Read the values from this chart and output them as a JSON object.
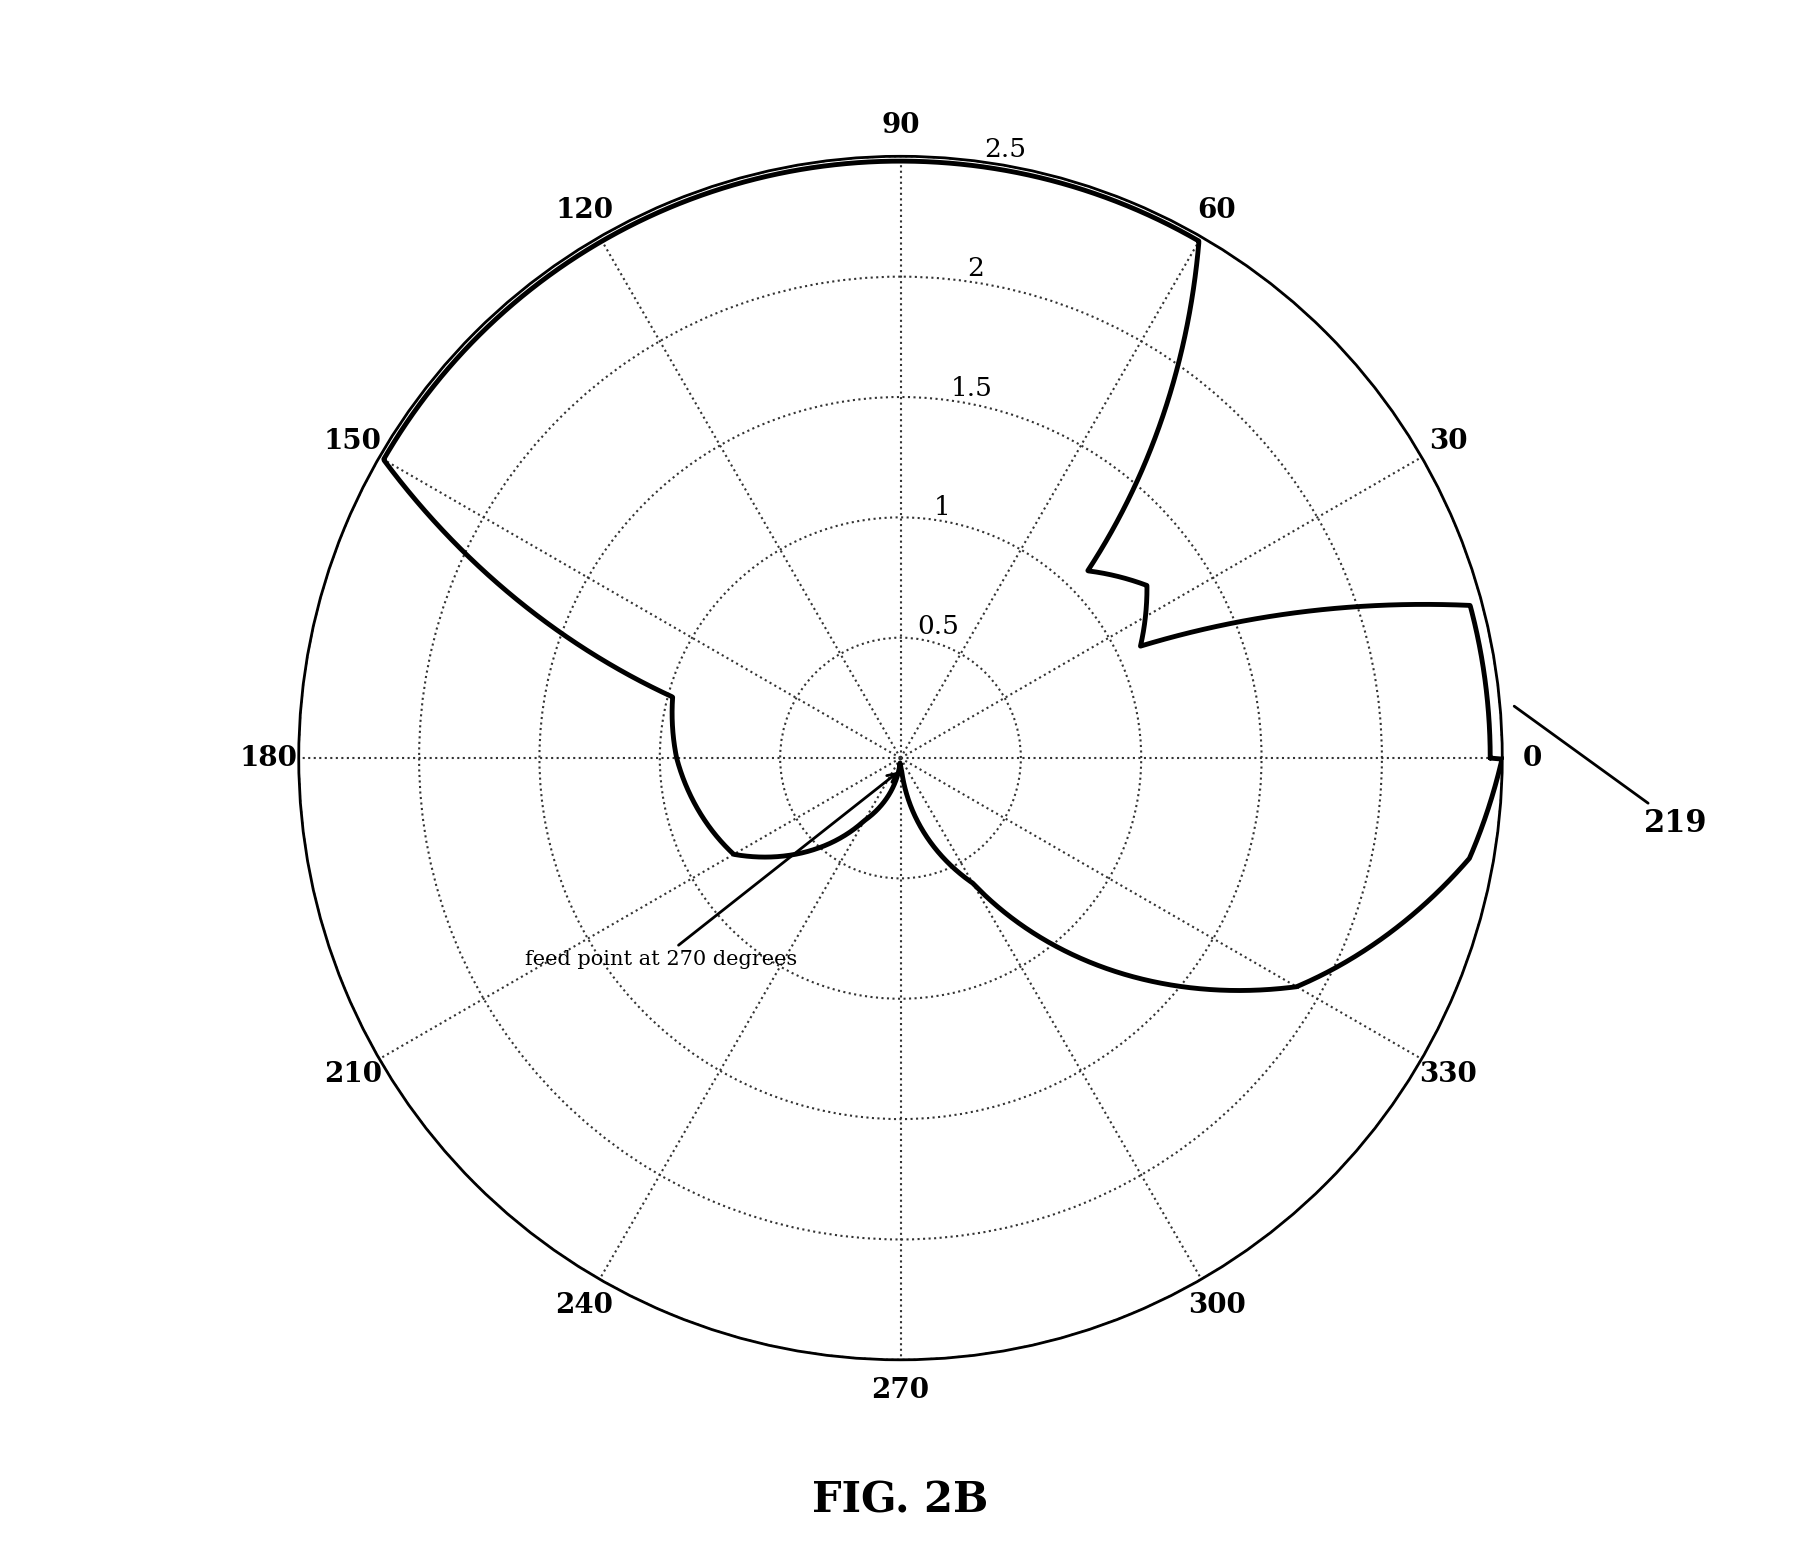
{
  "title": "FIG. 2B",
  "radial_ticks": [
    0.5,
    1.0,
    1.5,
    2.0,
    2.5
  ],
  "radial_max": 2.5,
  "angle_labels": [
    "0",
    "30",
    "60",
    "90",
    "120",
    "150",
    "180",
    "210",
    "240",
    "270",
    "300",
    "330"
  ],
  "background_color": "#ffffff",
  "curve_color": "#000000",
  "grid_color": "#555555",
  "grid_linewidth": 1.2,
  "curve_linewidth": 3.5,
  "figure_label": "FIG. 2B",
  "radial_label_values": [
    "0.5",
    "1",
    "1.5",
    "2",
    "2.5"
  ],
  "annotation_219": "219",
  "annotation_feed": "feed point at 270 degrees"
}
